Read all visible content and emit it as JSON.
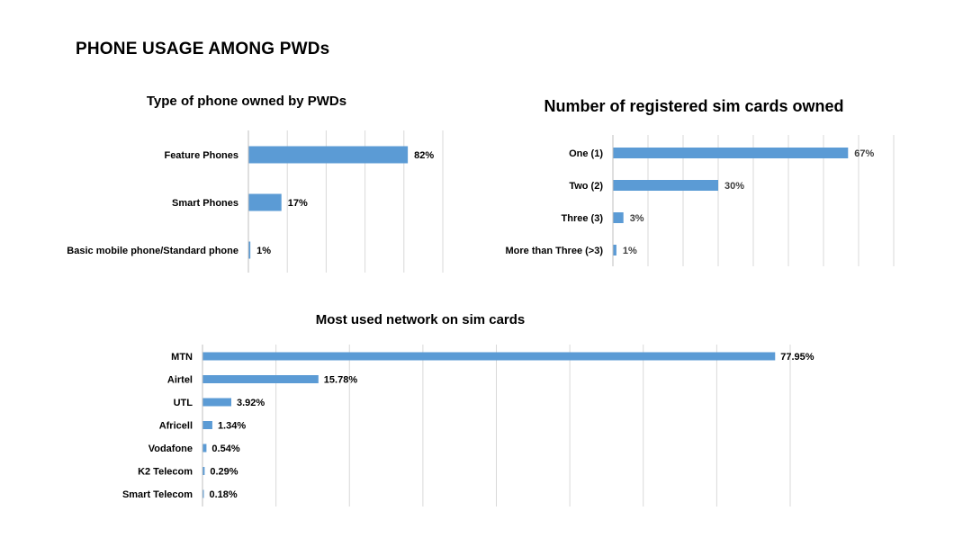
{
  "page": {
    "title": "PHONE USAGE AMONG PWDs"
  },
  "colors": {
    "bar": "#5b9bd5",
    "gridline": "#d9d9d9",
    "text": "#000000",
    "value_label_secondary": "#404040"
  },
  "chart_data": [
    {
      "type": "bar",
      "orientation": "horizontal",
      "title": "Type of phone owned by PWDs",
      "categories": [
        "Feature Phones",
        "Smart Phones",
        "Basic mobile phone/Standard phone"
      ],
      "values": [
        82,
        17,
        1
      ],
      "value_labels": [
        "82%",
        "17%",
        "1%"
      ],
      "unit": "%",
      "xlim": [
        0,
        100
      ],
      "grid": true,
      "legend": "none"
    },
    {
      "type": "bar",
      "orientation": "horizontal",
      "title": "Number of registered sim cards owned",
      "categories": [
        "One (1)",
        "Two (2)",
        "Three (3)",
        "More than Three (>3)"
      ],
      "values": [
        67,
        30,
        3,
        1
      ],
      "value_labels": [
        "67%",
        "30%",
        "3%",
        "1%"
      ],
      "unit": "%",
      "xlim": [
        0,
        80
      ],
      "grid": true,
      "legend": "none"
    },
    {
      "type": "bar",
      "orientation": "horizontal",
      "title": "Most used network on sim cards",
      "categories": [
        "MTN",
        "Airtel",
        "UTL",
        "Africell",
        "Vodafone",
        "K2 Telecom",
        "Smart Telecom"
      ],
      "values": [
        77.95,
        15.78,
        3.92,
        1.34,
        0.54,
        0.29,
        0.18
      ],
      "value_labels": [
        "77.95%",
        "15.78%",
        "3.92%",
        "1.34%",
        "0.54%",
        "0.29%",
        "0.18%"
      ],
      "unit": "%",
      "xlim": [
        0,
        80
      ],
      "grid": true,
      "legend": "none"
    }
  ]
}
